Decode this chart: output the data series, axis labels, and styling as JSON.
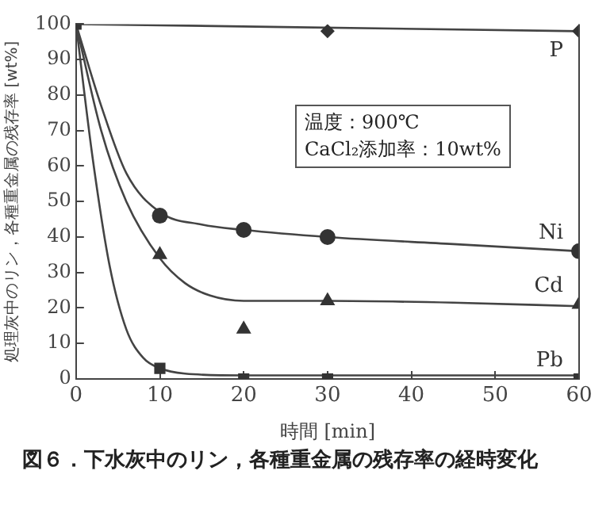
{
  "chart_data": {
    "type": "scatter",
    "title": "図６．下水灰中のリン，各種重金属の残存率の経時変化",
    "xlabel": "時間 [min]",
    "ylabel": "処理灰中のリン，各種重金属の残存率 [wt%]",
    "annotations": [
      "温度：900℃",
      "CaCl₂添加率：10wt%"
    ],
    "xlim": [
      0,
      60
    ],
    "xticks": [
      0,
      10,
      20,
      30,
      40,
      50,
      60
    ],
    "ylim": [
      0,
      100
    ],
    "yticks": [
      0,
      10,
      20,
      30,
      40,
      50,
      60,
      70,
      80,
      90,
      100
    ],
    "grid": false,
    "legend": false,
    "series": [
      {
        "name": "P",
        "color": "#333333",
        "marker": "diamond",
        "x": [
          30,
          60
        ],
        "values": [
          98,
          98
        ]
      },
      {
        "name": "Ni",
        "color": "#333333",
        "marker": "circle",
        "x": [
          10,
          20,
          30,
          60
        ],
        "values": [
          46,
          42,
          40,
          36
        ]
      },
      {
        "name": "Cd",
        "color": "#333333",
        "marker": "triangle",
        "x": [
          10,
          20,
          30,
          60
        ],
        "values": [
          35,
          14,
          22,
          21
        ]
      },
      {
        "name": "Pb",
        "color": "#333333",
        "marker": "square",
        "x": [
          0,
          10,
          20,
          30,
          60
        ],
        "values": [
          100,
          3,
          0,
          0,
          0
        ]
      },
      {
        "type": "line",
        "color": "#444444",
        "marker": "none",
        "x": [
          0,
          60
        ],
        "values": [
          100,
          98
        ]
      },
      {
        "type": "line",
        "color": "#444444",
        "marker": "none",
        "x": [
          0,
          3,
          6,
          10,
          15,
          20,
          30,
          45,
          60
        ],
        "values": [
          100,
          77,
          58,
          47,
          43.5,
          42,
          40,
          38,
          36
        ]
      },
      {
        "type": "line",
        "color": "#444444",
        "marker": "none",
        "x": [
          0,
          3,
          6,
          10,
          13,
          16,
          20,
          30,
          45,
          60
        ],
        "values": [
          100,
          70,
          50,
          34,
          27,
          23.5,
          22,
          22,
          21.5,
          20.5
        ]
      },
      {
        "type": "line",
        "color": "#444444",
        "marker": "none",
        "x": [
          0,
          2,
          4,
          6,
          8,
          10,
          13,
          20,
          60
        ],
        "values": [
          100,
          62,
          32,
          14,
          6,
          3,
          1.5,
          1,
          1
        ]
      }
    ]
  }
}
